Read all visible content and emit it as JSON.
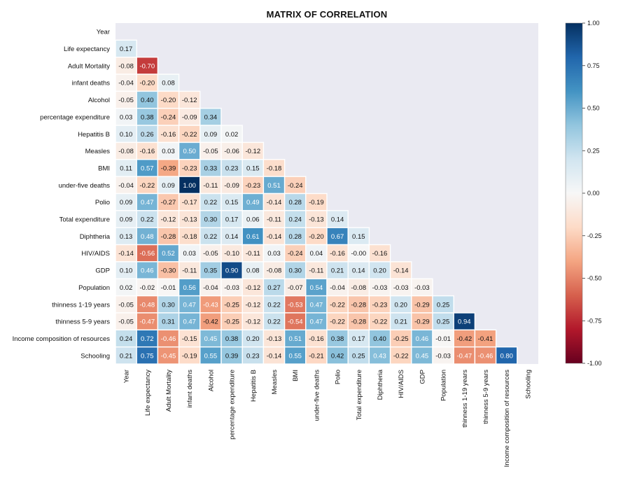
{
  "chart_data": {
    "type": "heatmap",
    "title": "MATRIX OF CORRELATION",
    "labels": [
      "Year",
      "Life expectancy",
      "Adult Mortality",
      "infant deaths",
      "Alcohol",
      "percentage expenditure",
      "Hepatitis B",
      "Measles",
      "BMI",
      "under-five deaths",
      "Polio",
      "Total expenditure",
      "Diphtheria",
      "HIV/AIDS",
      "GDP",
      "Population",
      "thinness  1-19 years",
      "thinness 5-9 years",
      "Income composition of resources",
      "Schooling"
    ],
    "matrix": [
      [],
      [
        "0.17"
      ],
      [
        "-0.08",
        "-0.70"
      ],
      [
        "-0.04",
        "-0.20",
        "0.08"
      ],
      [
        "-0.05",
        "0.40",
        "-0.20",
        "-0.12"
      ],
      [
        "0.03",
        "0.38",
        "-0.24",
        "-0.09",
        "0.34"
      ],
      [
        "0.10",
        "0.26",
        "-0.16",
        "-0.22",
        "0.09",
        "0.02"
      ],
      [
        "-0.08",
        "-0.16",
        "0.03",
        "0.50",
        "-0.05",
        "-0.06",
        "-0.12"
      ],
      [
        "0.11",
        "0.57",
        "-0.39",
        "-0.23",
        "0.33",
        "0.23",
        "0.15",
        "-0.18"
      ],
      [
        "-0.04",
        "-0.22",
        "0.09",
        "1.00",
        "-0.11",
        "-0.09",
        "-0.23",
        "0.51",
        "-0.24"
      ],
      [
        "0.09",
        "0.47",
        "-0.27",
        "-0.17",
        "0.22",
        "0.15",
        "0.49",
        "-0.14",
        "0.28",
        "-0.19"
      ],
      [
        "0.09",
        "0.22",
        "-0.12",
        "-0.13",
        "0.30",
        "0.17",
        "0.06",
        "-0.11",
        "0.24",
        "-0.13",
        "0.14"
      ],
      [
        "0.13",
        "0.48",
        "-0.28",
        "-0.18",
        "0.22",
        "0.14",
        "0.61",
        "-0.14",
        "0.28",
        "-0.20",
        "0.67",
        "0.15"
      ],
      [
        "-0.14",
        "-0.56",
        "0.52",
        "0.03",
        "-0.05",
        "-0.10",
        "-0.11",
        "0.03",
        "-0.24",
        "0.04",
        "-0.16",
        "-0.00",
        "-0.16"
      ],
      [
        "0.10",
        "0.46",
        "-0.30",
        "-0.11",
        "0.35",
        "0.90",
        "0.08",
        "-0.08",
        "0.30",
        "-0.11",
        "0.21",
        "0.14",
        "0.20",
        "-0.14"
      ],
      [
        "0.02",
        "-0.02",
        "-0.01",
        "0.56",
        "-0.04",
        "-0.03",
        "-0.12",
        "0.27",
        "-0.07",
        "0.54",
        "-0.04",
        "-0.08",
        "-0.03",
        "-0.03",
        "-0.03"
      ],
      [
        "-0.05",
        "-0.48",
        "0.30",
        "0.47",
        "-0.43",
        "-0.25",
        "-0.12",
        "0.22",
        "-0.53",
        "0.47",
        "-0.22",
        "-0.28",
        "-0.23",
        "0.20",
        "-0.29",
        "0.25"
      ],
      [
        "-0.05",
        "-0.47",
        "0.31",
        "0.47",
        "-0.42",
        "-0.25",
        "-0.12",
        "0.22",
        "-0.54",
        "0.47",
        "-0.22",
        "-0.28",
        "-0.22",
        "0.21",
        "-0.29",
        "0.25",
        "0.94"
      ],
      [
        "0.24",
        "0.72",
        "-0.46",
        "-0.15",
        "0.45",
        "0.38",
        "0.20",
        "-0.13",
        "0.51",
        "-0.16",
        "0.38",
        "0.17",
        "0.40",
        "-0.25",
        "0.46",
        "-0.01",
        "-0.42",
        "-0.41"
      ],
      [
        "0.21",
        "0.75",
        "-0.45",
        "-0.19",
        "0.55",
        "0.39",
        "0.23",
        "-0.14",
        "0.55",
        "-0.21",
        "0.42",
        "0.25",
        "0.43",
        "-0.22",
        "0.45",
        "-0.03",
        "-0.47",
        "-0.46",
        "0.80"
      ]
    ],
    "colorbar": {
      "min": -1.0,
      "max": 1.0,
      "ticks": [
        "1.00",
        "0.75",
        "0.50",
        "0.25",
        "0.00",
        "-0.25",
        "-0.50",
        "-0.75",
        "-1.00"
      ],
      "colormap": "RdBu",
      "colors": [
        "#67001f",
        "#b2182b",
        "#d6604d",
        "#f4a582",
        "#fddbc7",
        "#f7f7f7",
        "#d1e5f0",
        "#92c5de",
        "#4393c3",
        "#2166ac",
        "#053061"
      ]
    },
    "mask": "upper triangle incl. diagonal",
    "grid": "white cell borders"
  }
}
